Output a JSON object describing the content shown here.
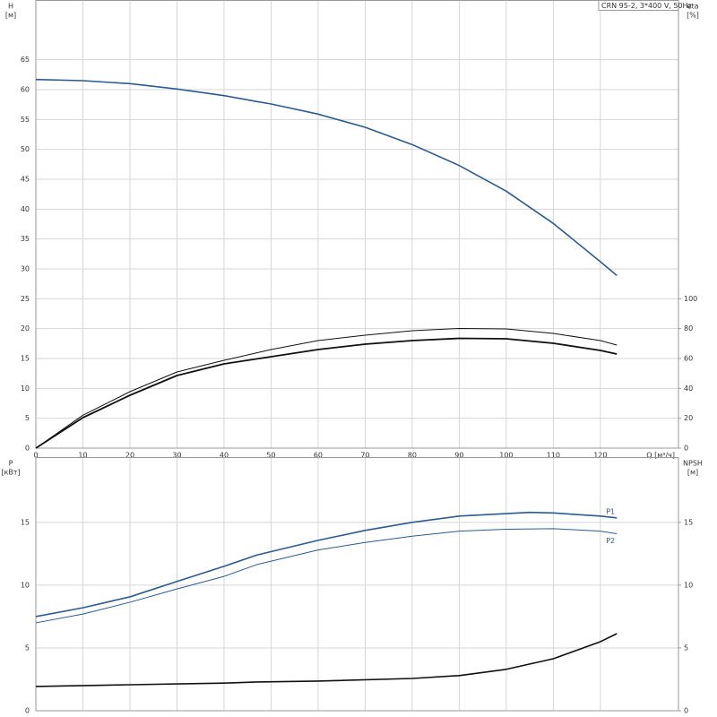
{
  "chart_data": [
    {
      "type": "line",
      "title": "CRN 95-2, 3*400 V, 50Hz",
      "ylabel": "H",
      "ylabel_unit": "[м]",
      "y2label": "eta",
      "y2label_unit": "[%]",
      "xlabel": "Q [м³/ч]",
      "xlim": [
        0,
        136.6
      ],
      "xticks": [
        0,
        10,
        20,
        30,
        40,
        50,
        60,
        70,
        80,
        90,
        100,
        110,
        120
      ],
      "ylim": [
        0,
        75
      ],
      "yticks": [
        0,
        5,
        10,
        15,
        20,
        25,
        30,
        35,
        40,
        45,
        50,
        55,
        60,
        65
      ],
      "y2lim": [
        0,
        300
      ],
      "y2ticks": [
        0,
        20,
        40,
        60,
        80,
        100
      ],
      "grid": true,
      "show_xtick_labels": true,
      "series": [
        {
          "color": "#2b5b91",
          "line_width": 1.6,
          "axis": "y",
          "x": [
            0,
            10,
            20,
            30,
            40,
            47,
            50,
            60,
            70,
            80,
            90,
            100,
            110,
            120,
            123.5
          ],
          "values": [
            61.7,
            61.5,
            61.0,
            60.1,
            59.0,
            58.0,
            57.6,
            55.9,
            53.7,
            50.8,
            47.3,
            43.0,
            37.6,
            31.2,
            28.9
          ]
        },
        {
          "color": "#111111",
          "line_width": 1,
          "axis": "y2",
          "x": [
            0,
            10,
            20,
            30,
            40,
            50,
            60,
            70,
            80,
            90,
            100,
            110,
            120,
            123.5
          ],
          "values": [
            0,
            22,
            37.8,
            51,
            58.8,
            66,
            72,
            75.6,
            78.6,
            80.1,
            79.8,
            76.8,
            72,
            69
          ]
        },
        {
          "color": "#111111",
          "line_width": 1.8,
          "axis": "y2",
          "x": [
            0,
            10,
            20,
            30,
            40,
            50,
            60,
            70,
            80,
            90,
            100,
            110,
            120,
            123.5
          ],
          "values": [
            0,
            20.4,
            35.4,
            48.6,
            56.4,
            61.2,
            66,
            69.6,
            72,
            73.5,
            73.2,
            70.2,
            65.4,
            63
          ]
        }
      ]
    },
    {
      "type": "line",
      "ylabel": "P",
      "ylabel_unit": "[кВт]",
      "y2label": "NPSH",
      "y2label_unit": "[м]",
      "xlim": [
        0,
        136.6
      ],
      "xticks": [
        0,
        10,
        20,
        30,
        40,
        50,
        60,
        70,
        80,
        90,
        100,
        110,
        120
      ],
      "ylim": [
        0,
        20.2
      ],
      "yticks": [
        0,
        5,
        10,
        15
      ],
      "y2lim": [
        0,
        20.2
      ],
      "y2ticks": [
        0,
        5,
        10,
        15
      ],
      "grid": true,
      "show_xtick_labels": false,
      "series": [
        {
          "name": "P1",
          "color": "#2b5b91",
          "line_width": 1.6,
          "axis": "y",
          "x": [
            0,
            10,
            20,
            30,
            40,
            47,
            60,
            70,
            80,
            90,
            100,
            105,
            110,
            120,
            123.5
          ],
          "values": [
            7.5,
            8.2,
            9.07,
            10.3,
            11.5,
            12.4,
            13.57,
            14.36,
            15.0,
            15.5,
            15.7,
            15.8,
            15.75,
            15.5,
            15.36
          ]
        },
        {
          "name": "P2",
          "color": "#2b5b91",
          "line_width": 1,
          "axis": "y",
          "x": [
            0,
            10,
            20,
            30,
            40,
            47,
            60,
            70,
            80,
            90,
            100,
            110,
            120,
            123.5
          ],
          "values": [
            7.0,
            7.7,
            8.64,
            9.7,
            10.7,
            11.64,
            12.8,
            13.4,
            13.9,
            14.3,
            14.45,
            14.5,
            14.3,
            14.1
          ]
        },
        {
          "color": "#111111",
          "line_width": 1.6,
          "axis": "y2",
          "x": [
            0,
            20,
            40,
            47,
            60,
            80,
            90,
            100,
            110,
            120,
            123.5
          ],
          "values": [
            1.93,
            2.07,
            2.2,
            2.29,
            2.36,
            2.57,
            2.8,
            3.3,
            4.14,
            5.5,
            6.14
          ]
        }
      ]
    }
  ]
}
